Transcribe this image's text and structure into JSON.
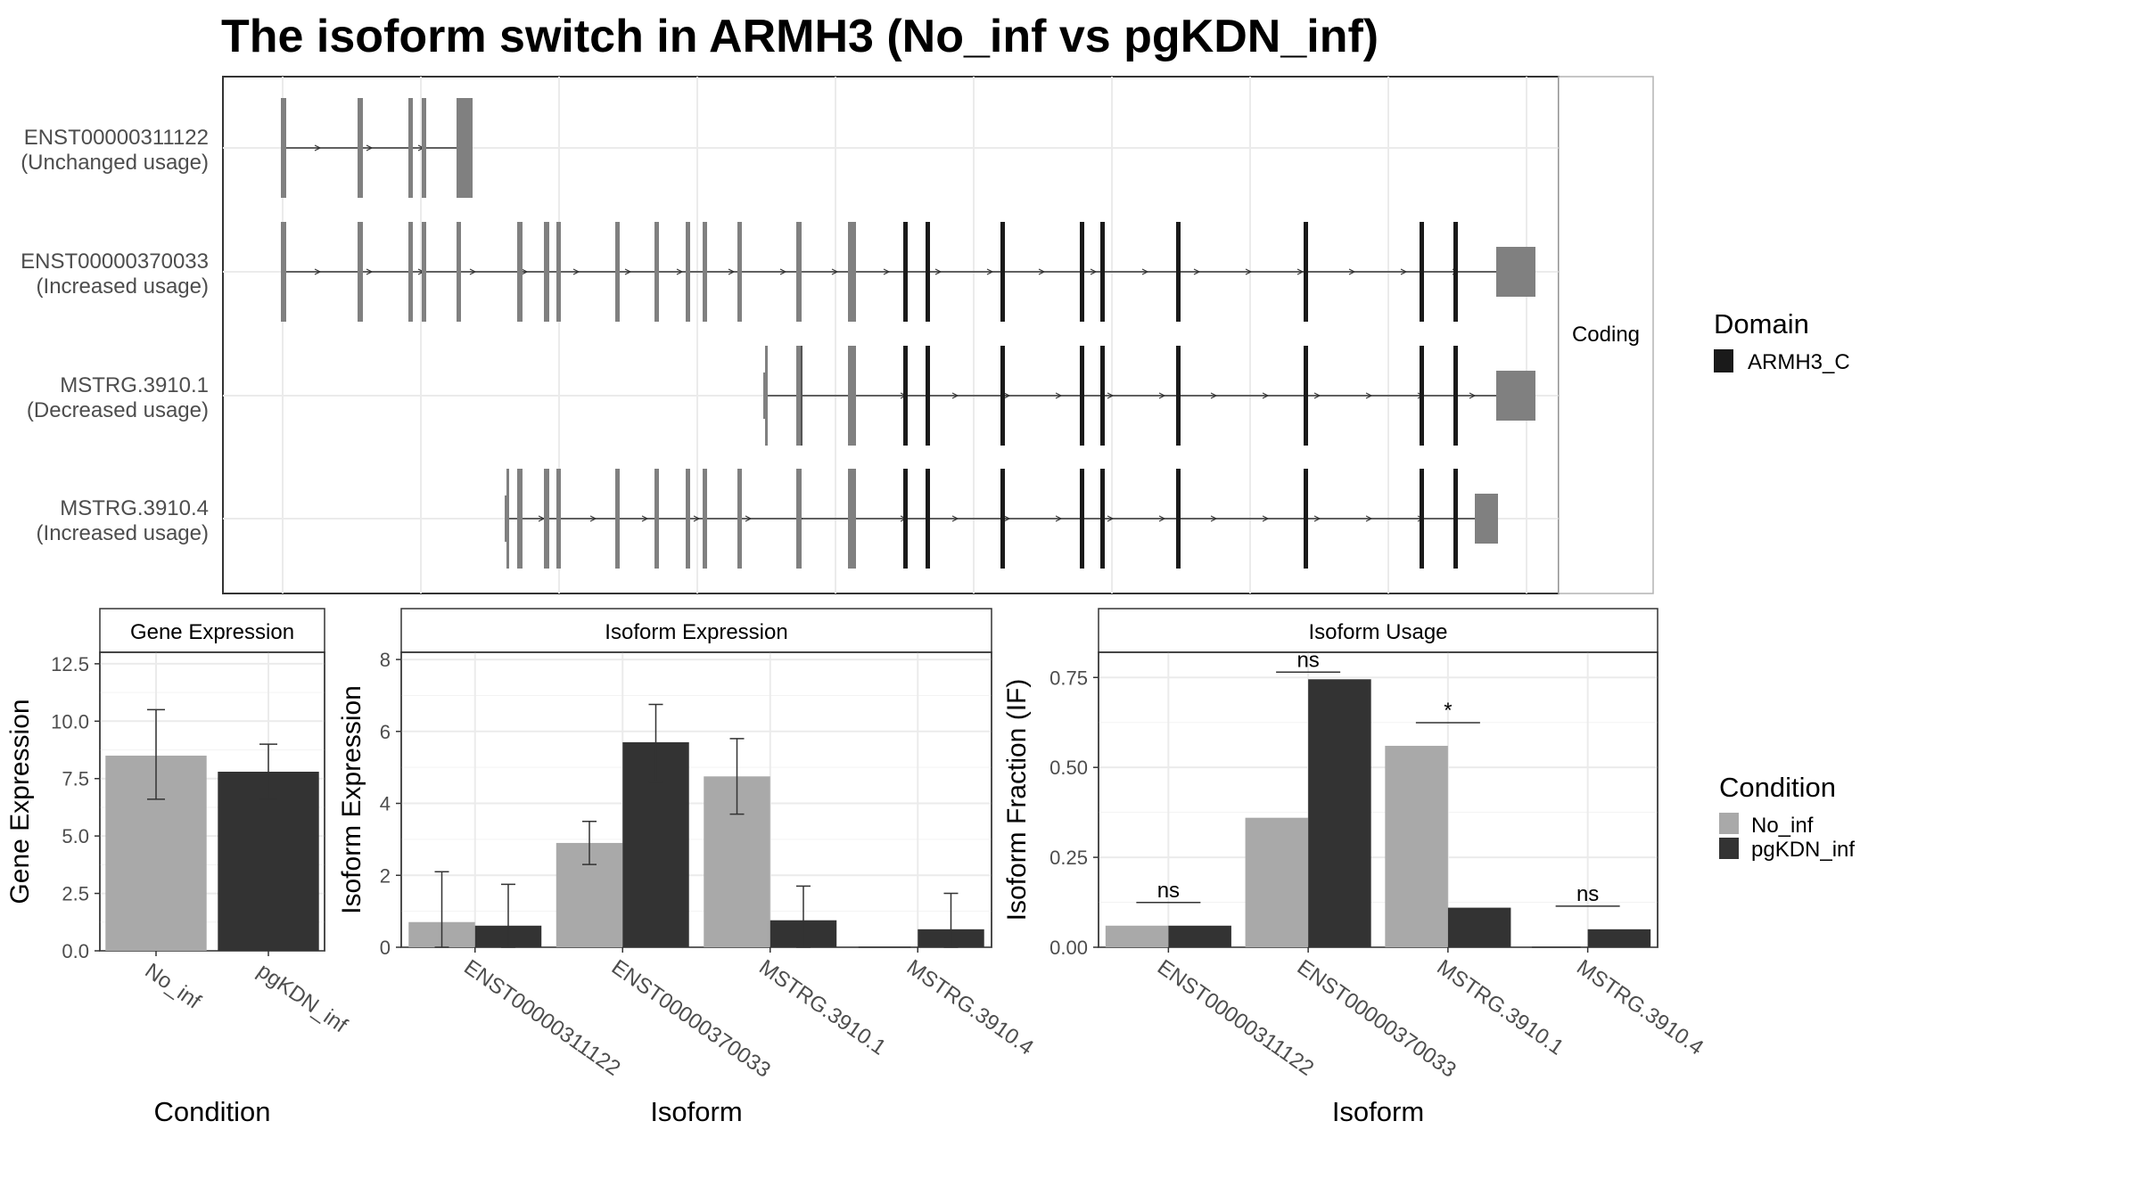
{
  "title": "The isoform switch in ARMH3 (No_inf vs pgKDN_inf)",
  "colors": {
    "no_inf": "#a9a9a9",
    "pgkdn_inf": "#333333",
    "utr_exon": "#808080",
    "domain": "#1a1a1a",
    "grid": "#ebebeb",
    "strip_bg": "#ffffff"
  },
  "chart_data": [
    {
      "type": "gene-structure",
      "strip_label": "Coding",
      "legend": {
        "title": "Domain",
        "items": [
          "ARMH3_C"
        ]
      },
      "transcripts": [
        {
          "id": "ENST00000311122",
          "usage": "(Unchanged usage)"
        },
        {
          "id": "ENST00000370033",
          "usage": "(Increased usage)"
        },
        {
          "id": "MSTRG.3910.1",
          "usage": "(Decreased usage)"
        },
        {
          "id": "MSTRG.3910.4",
          "usage": "(Increased usage)"
        }
      ]
    },
    {
      "type": "bar",
      "title": "Gene Expression",
      "xlabel": "Condition",
      "ylabel": "Gene Expression",
      "categories": [
        "No_inf",
        "pgKDN_inf"
      ],
      "values": [
        8.5,
        7.8
      ],
      "error_low": [
        6.6,
        6.6
      ],
      "error_high": [
        10.5,
        9.0
      ],
      "ylim": [
        0,
        13
      ],
      "yticks": [
        "0.0",
        "2.5",
        "5.0",
        "7.5",
        "10.0",
        "12.5"
      ]
    },
    {
      "type": "bar",
      "title": "Isoform Expression",
      "xlabel": "Isoform",
      "ylabel": "Isoform Expression",
      "categories": [
        "ENST00000311122",
        "ENST00000370033",
        "MSTRG.3910.1",
        "MSTRG.3910.4"
      ],
      "series": [
        {
          "name": "No_inf",
          "values": [
            0.7,
            2.9,
            4.75,
            0.0
          ],
          "error_low": [
            0.0,
            2.3,
            3.7,
            null
          ],
          "error_high": [
            2.1,
            3.5,
            5.8,
            null
          ]
        },
        {
          "name": "pgKDN_inf",
          "values": [
            0.6,
            5.7,
            0.75,
            0.5
          ],
          "error_low": [
            0.0,
            4.6,
            0.0,
            0.0
          ],
          "error_high": [
            1.75,
            6.75,
            1.7,
            1.5
          ]
        }
      ],
      "ylim": [
        0,
        8.2
      ],
      "yticks": [
        "0",
        "2",
        "4",
        "6",
        "8"
      ]
    },
    {
      "type": "bar",
      "title": "Isoform Usage",
      "xlabel": "Isoform",
      "ylabel": "Isoform Fraction (IF)",
      "categories": [
        "ENST00000311122",
        "ENST00000370033",
        "MSTRG.3910.1",
        "MSTRG.3910.4"
      ],
      "series": [
        {
          "name": "No_inf",
          "values": [
            0.06,
            0.36,
            0.56,
            0.0
          ]
        },
        {
          "name": "pgKDN_inf",
          "values": [
            0.06,
            0.745,
            0.11,
            0.05
          ]
        }
      ],
      "significance": [
        "ns",
        "ns",
        "*",
        "ns"
      ],
      "ylim": [
        0,
        0.82
      ],
      "yticks": [
        "0.00",
        "0.25",
        "0.50",
        "0.75"
      ]
    }
  ],
  "condition_legend": {
    "title": "Condition",
    "items": [
      "No_inf",
      "pgKDN_inf"
    ]
  }
}
